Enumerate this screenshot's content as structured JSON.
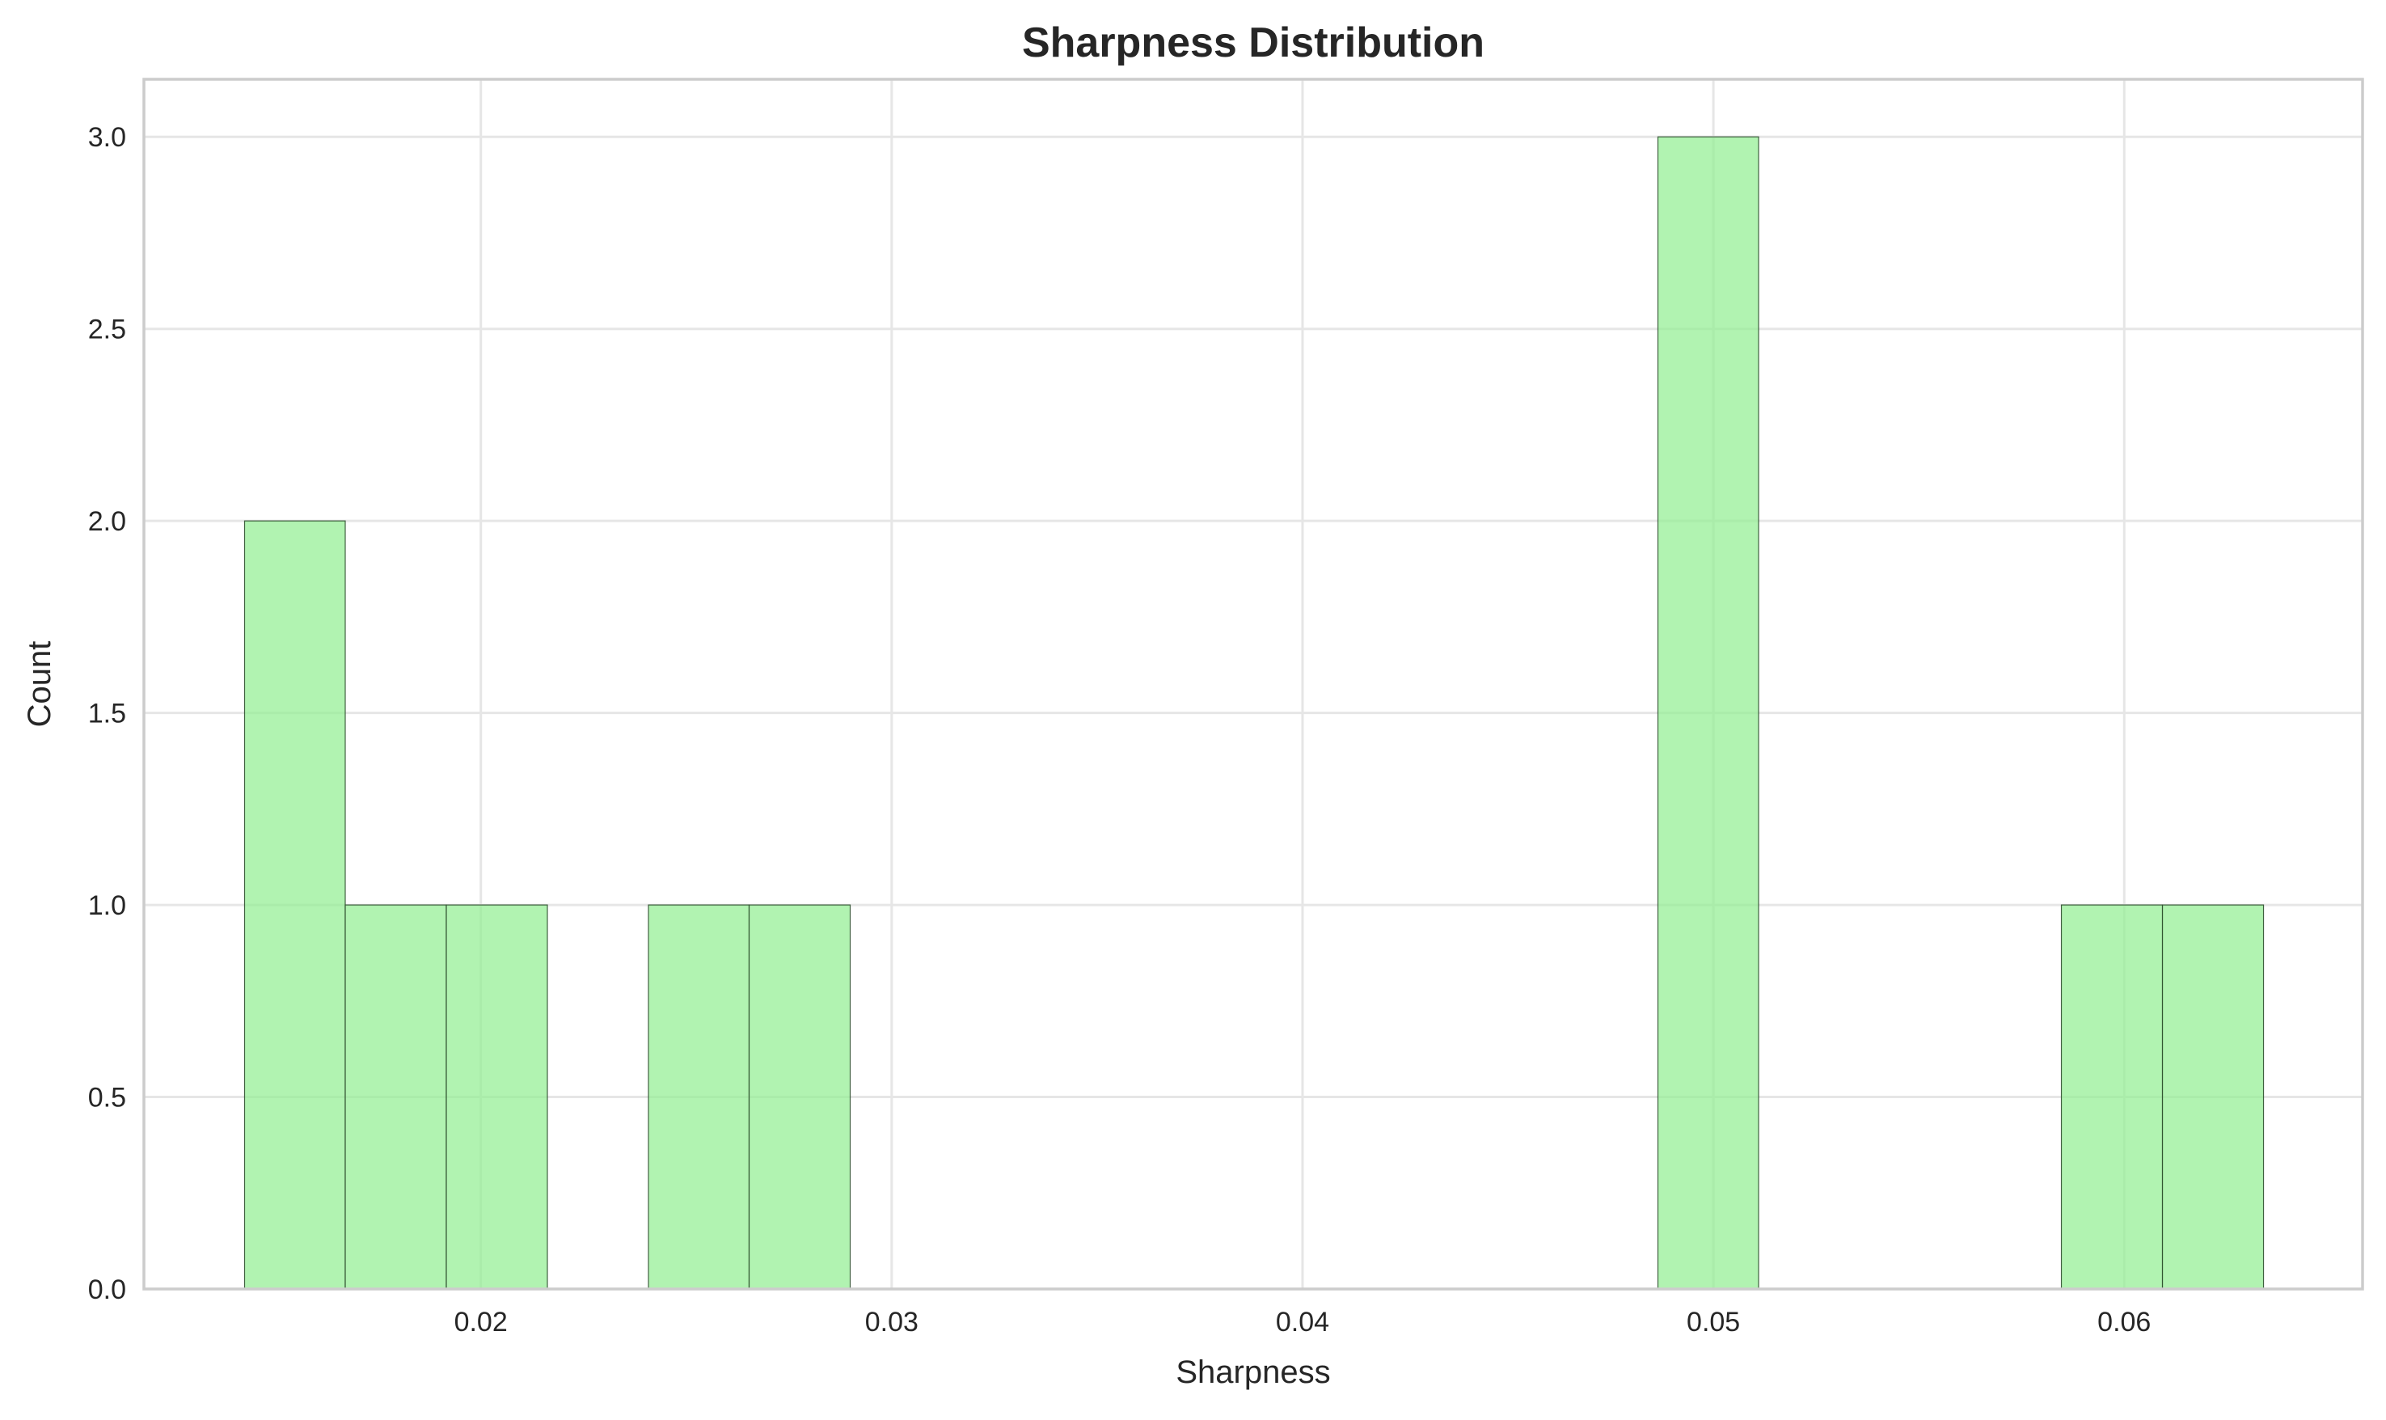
{
  "chart_data": {
    "type": "bar",
    "title": "Sharpness Distribution",
    "xlabel": "Sharpness",
    "ylabel": "Count",
    "bar_color": "#90ee90",
    "bar_edge_color": "#2f4f2f",
    "grid": true,
    "xlim": [
      0.0118,
      0.0658
    ],
    "ylim": [
      0,
      3.15
    ],
    "x_ticks": [
      0.02,
      0.03,
      0.04,
      0.05,
      0.06
    ],
    "x_tick_labels": [
      "0.02",
      "0.03",
      "0.04",
      "0.05",
      "0.06"
    ],
    "y_ticks": [
      0.0,
      0.5,
      1.0,
      1.5,
      2.0,
      2.5,
      3.0
    ],
    "y_tick_labels": [
      "0.0",
      "0.5",
      "1.0",
      "1.5",
      "2.0",
      "2.5",
      "3.0"
    ],
    "bins": [
      {
        "start": 0.01425,
        "end": 0.0167,
        "count": 2
      },
      {
        "start": 0.0167,
        "end": 0.01916,
        "count": 1
      },
      {
        "start": 0.01916,
        "end": 0.02162,
        "count": 1
      },
      {
        "start": 0.02408,
        "end": 0.02653,
        "count": 1
      },
      {
        "start": 0.02653,
        "end": 0.02899,
        "count": 1
      },
      {
        "start": 0.04865,
        "end": 0.0511,
        "count": 3
      },
      {
        "start": 0.05847,
        "end": 0.06093,
        "count": 1
      },
      {
        "start": 0.06093,
        "end": 0.06339,
        "count": 1
      }
    ]
  }
}
